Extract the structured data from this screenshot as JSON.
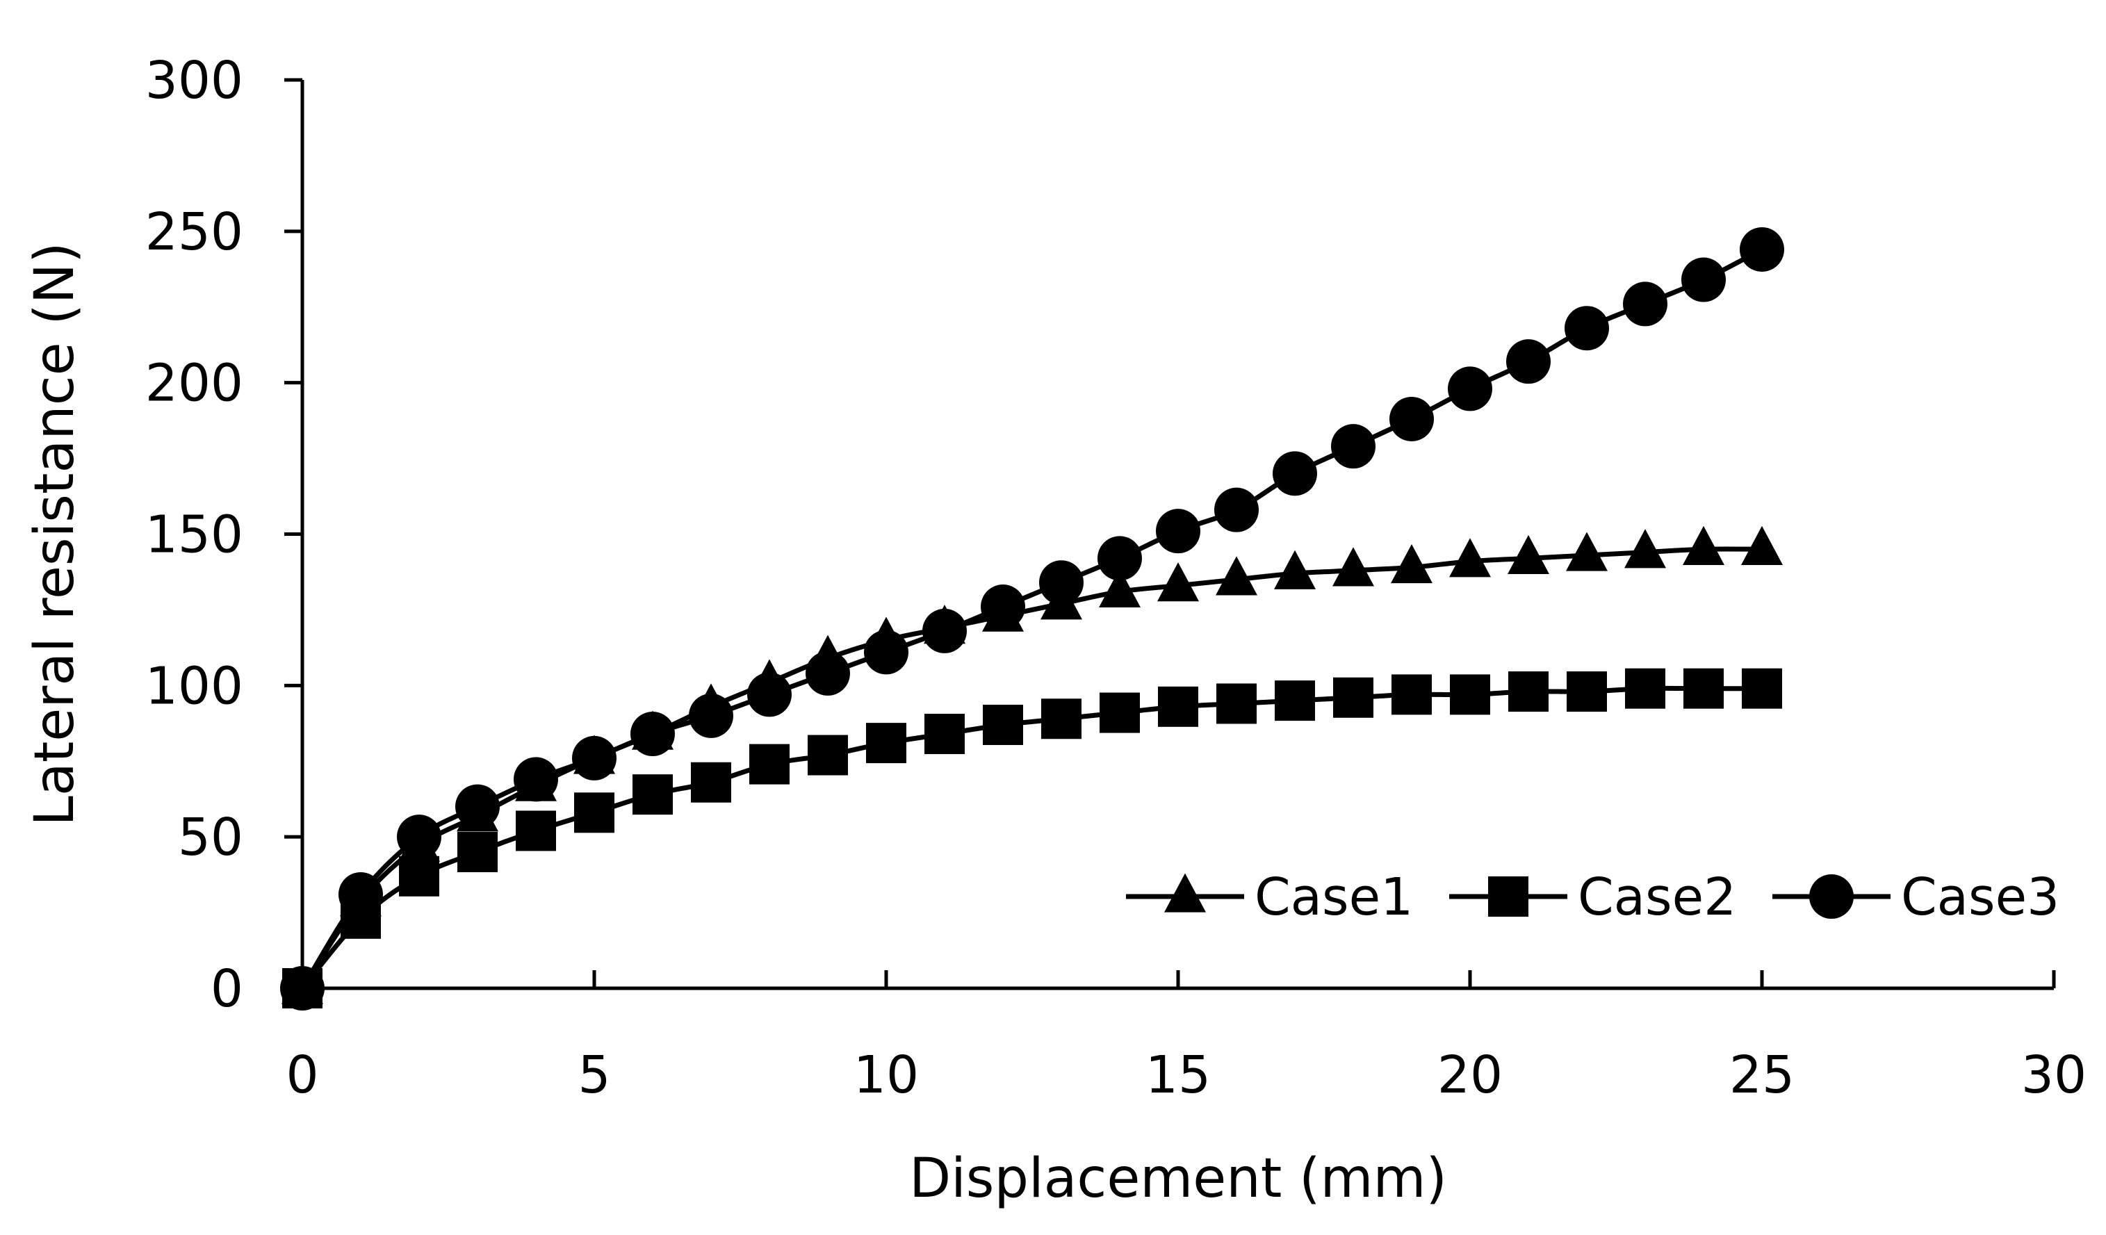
{
  "chart_data": {
    "type": "line",
    "title": "",
    "xlabel": "Displacement (mm)",
    "ylabel": "Lateral resistance (N)",
    "xlim": [
      0,
      30
    ],
    "ylim": [
      0,
      300
    ],
    "xticks": [
      0,
      5,
      10,
      15,
      20,
      25,
      30
    ],
    "yticks": [
      0,
      50,
      100,
      150,
      200,
      250,
      300
    ],
    "grid": false,
    "legend_position": "bottom-right",
    "x": [
      0,
      1,
      2,
      3,
      4,
      5,
      6,
      7,
      8,
      9,
      10,
      11,
      12,
      13,
      14,
      15,
      16,
      17,
      18,
      19,
      20,
      21,
      22,
      23,
      24,
      25
    ],
    "series": [
      {
        "name": "Case1",
        "marker": "triangle",
        "color": "#000000",
        "values": [
          0,
          29,
          47,
          57,
          67,
          76,
          84,
          93,
          101,
          109,
          115,
          119,
          123,
          127,
          131,
          133,
          135,
          137,
          138,
          139,
          141,
          142,
          143,
          144,
          145,
          145
        ]
      },
      {
        "name": "Case2",
        "marker": "square",
        "color": "#000000",
        "values": [
          0,
          23,
          37,
          45,
          52,
          58,
          64,
          68,
          74,
          77,
          81,
          84,
          87,
          89,
          91,
          93,
          94,
          95,
          96,
          97,
          97,
          98,
          98,
          99,
          99,
          99
        ]
      },
      {
        "name": "Case3",
        "marker": "circle",
        "color": "#000000",
        "values": [
          0,
          31,
          50,
          60,
          69,
          76,
          84,
          90,
          97,
          104,
          111,
          118,
          126,
          134,
          142,
          151,
          158,
          170,
          179,
          188,
          198,
          207,
          218,
          226,
          234,
          244
        ]
      }
    ]
  }
}
